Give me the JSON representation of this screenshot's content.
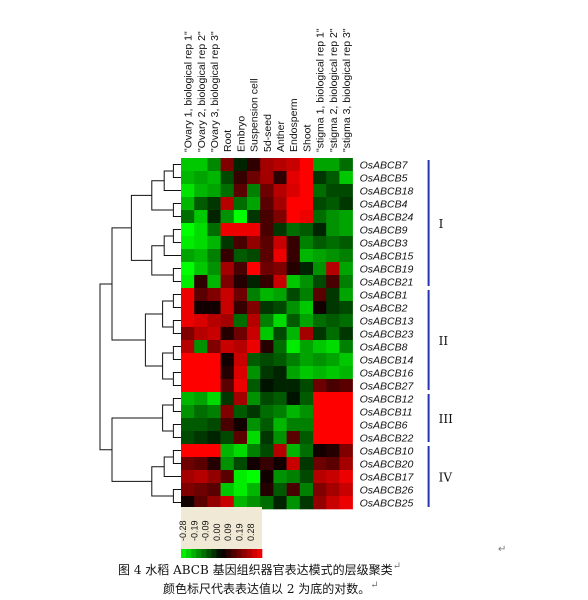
{
  "chart_data": {
    "type": "heatmap",
    "columns": [
      "\"Ovary 1, biological rep 1\"",
      "\"Ovary 2, biological rep 2\"",
      "\"Ovary 3, biological rep 3\"",
      "Root",
      "Embryo",
      "Suspension cell",
      "5d-seed",
      "Anther",
      "Endosperm",
      "Shoot",
      "\"stigma 1, biological rep 1\"",
      "\"stigma 2, biological rep 2\"",
      "\"stigma 3, biological rep 3\""
    ],
    "rows": [
      "OsABCB7",
      "OsABCB5",
      "OsABCB18",
      "OsABCB4",
      "OsABCB24",
      "OsABCB9",
      "OsABCB3",
      "OsABCB15",
      "OsABCB19",
      "OsABCB21",
      "OsABCB1",
      "OsABCB2",
      "OsABCB13",
      "OsABCB23",
      "OsABCB8",
      "OsABCB14",
      "OsABCB16",
      "OsABCB27",
      "OsABCB12",
      "OsABCB11",
      "OsABCB6",
      "OsABCB22",
      "OsABCB10",
      "OsABCB20",
      "OsABCB17",
      "OsABCB26",
      "OsABCB25"
    ],
    "values": [
      [
        -0.22,
        -0.22,
        -0.15,
        0.14,
        -0.04,
        0.05,
        0.18,
        0.2,
        0.22,
        0.28,
        -0.18,
        -0.18,
        -0.12
      ],
      [
        -0.2,
        -0.18,
        -0.2,
        -0.08,
        0.06,
        0.12,
        0.18,
        0.05,
        0.25,
        0.28,
        -0.06,
        -0.1,
        -0.22
      ],
      [
        -0.25,
        -0.2,
        -0.18,
        -0.12,
        0.1,
        -0.14,
        0.12,
        0.2,
        0.24,
        0.28,
        -0.12,
        -0.08,
        -0.08
      ],
      [
        -0.2,
        -0.1,
        -0.06,
        0.2,
        -0.12,
        -0.18,
        0.1,
        0.18,
        0.28,
        0.28,
        -0.08,
        -0.1,
        -0.06
      ],
      [
        -0.12,
        -0.22,
        -0.04,
        -0.16,
        -0.28,
        -0.06,
        0.08,
        0.14,
        0.28,
        0.26,
        -0.12,
        -0.16,
        -0.18
      ],
      [
        -0.28,
        -0.24,
        -0.12,
        0.26,
        0.26,
        0.26,
        0.08,
        -0.06,
        -0.12,
        -0.1,
        -0.04,
        -0.16,
        -0.18
      ],
      [
        -0.26,
        -0.24,
        -0.2,
        -0.06,
        0.08,
        0.16,
        0.1,
        0.22,
        0.06,
        -0.14,
        -0.1,
        -0.12,
        -0.1
      ],
      [
        -0.18,
        -0.2,
        -0.14,
        0.06,
        -0.1,
        -0.08,
        0.1,
        0.26,
        0.06,
        -0.2,
        -0.18,
        -0.16,
        -0.14
      ],
      [
        -0.28,
        -0.22,
        -0.16,
        0.18,
        0.08,
        0.28,
        0.12,
        0.14,
        0.04,
        -0.04,
        -0.16,
        0.2,
        -0.18
      ],
      [
        -0.26,
        0.05,
        -0.2,
        0.14,
        0.04,
        -0.04,
        0.06,
        0.22,
        -0.22,
        -0.16,
        -0.08,
        0.08,
        -0.14
      ],
      [
        0.26,
        0.1,
        0.14,
        0.22,
        0.12,
        -0.14,
        -0.2,
        -0.18,
        -0.08,
        -0.14,
        0.1,
        -0.06,
        -0.18
      ],
      [
        0.26,
        0.02,
        0.02,
        0.22,
        0.06,
        0.14,
        -0.06,
        -0.08,
        -0.16,
        -0.22,
        0.02,
        -0.06,
        -0.08
      ],
      [
        0.26,
        0.24,
        0.2,
        0.18,
        -0.12,
        0.2,
        -0.14,
        -0.24,
        -0.1,
        -0.18,
        -0.12,
        -0.1,
        -0.12
      ],
      [
        0.14,
        0.2,
        0.22,
        0.04,
        0.12,
        0.22,
        -0.22,
        -0.08,
        -0.2,
        0.18,
        -0.06,
        -0.12,
        -0.06
      ],
      [
        0.2,
        -0.16,
        0.14,
        0.22,
        0.2,
        0.26,
        0.04,
        -0.12,
        -0.26,
        -0.18,
        -0.22,
        -0.24,
        -0.14
      ],
      [
        0.28,
        0.28,
        0.28,
        0.02,
        0.22,
        -0.1,
        -0.08,
        -0.1,
        -0.14,
        -0.18,
        -0.16,
        -0.18,
        -0.22
      ],
      [
        0.28,
        0.28,
        0.28,
        0.04,
        0.24,
        -0.16,
        -0.06,
        -0.04,
        -0.18,
        -0.22,
        -0.2,
        -0.22,
        -0.2
      ],
      [
        0.28,
        0.28,
        0.28,
        0.1,
        0.26,
        -0.1,
        -0.02,
        -0.04,
        -0.04,
        -0.08,
        0.12,
        0.08,
        0.1
      ],
      [
        -0.2,
        -0.18,
        -0.24,
        -0.06,
        0.18,
        -0.16,
        -0.08,
        -0.1,
        -0.02,
        -0.1,
        0.28,
        0.28,
        0.28
      ],
      [
        -0.16,
        -0.12,
        -0.14,
        0.14,
        -0.1,
        -0.06,
        -0.12,
        -0.14,
        -0.2,
        -0.16,
        0.28,
        0.28,
        0.28
      ],
      [
        -0.1,
        -0.1,
        -0.08,
        0.08,
        0.02,
        -0.16,
        -0.1,
        -0.2,
        -0.14,
        -0.14,
        0.28,
        0.28,
        0.28
      ],
      [
        -0.08,
        -0.06,
        -0.04,
        -0.08,
        0.1,
        -0.24,
        -0.06,
        -0.16,
        0.1,
        -0.1,
        0.28,
        0.28,
        0.28
      ],
      [
        0.28,
        0.28,
        0.28,
        -0.2,
        -0.24,
        -0.14,
        -0.08,
        0.2,
        -0.2,
        -0.12,
        0.02,
        0.04,
        0.14
      ],
      [
        0.12,
        0.1,
        0.04,
        -0.16,
        -0.08,
        0.02,
        0.06,
        0.02,
        0.22,
        -0.06,
        0.12,
        0.1,
        0.18
      ],
      [
        0.18,
        0.2,
        0.16,
        0.1,
        -0.26,
        -0.28,
        0.02,
        -0.16,
        -0.14,
        -0.08,
        0.2,
        0.22,
        0.26
      ],
      [
        0.14,
        0.12,
        0.1,
        -0.22,
        -0.26,
        -0.2,
        0.04,
        -0.1,
        0.08,
        -0.14,
        0.14,
        0.18,
        0.22
      ],
      [
        0.02,
        0.1,
        0.16,
        0.22,
        -0.2,
        -0.16,
        -0.12,
        -0.04,
        -0.16,
        -0.06,
        0.16,
        0.22,
        0.26
      ]
    ],
    "clusters": [
      {
        "label": "I",
        "rows": [
          0,
          9
        ]
      },
      {
        "label": "II",
        "rows": [
          10,
          17
        ]
      },
      {
        "label": "III",
        "rows": [
          18,
          21
        ]
      },
      {
        "label": "IV",
        "rows": [
          22,
          26
        ]
      }
    ],
    "color_scale": {
      "ticks": [
        "-0.28",
        "-0.19",
        "-0.09",
        "0.00",
        "0.09",
        "0.19",
        "0.28"
      ],
      "low": "#00ff00",
      "mid": "#000000",
      "high": "#ff0000"
    },
    "cluster_bar_color": "#2533b5"
  },
  "caption": {
    "line1": "图 4   水稻 ABCB 基因组织器官表达模式的层级聚类",
    "line2": "颜色标尺代表表达值以 2 为底的对数。"
  },
  "caret": "↵"
}
